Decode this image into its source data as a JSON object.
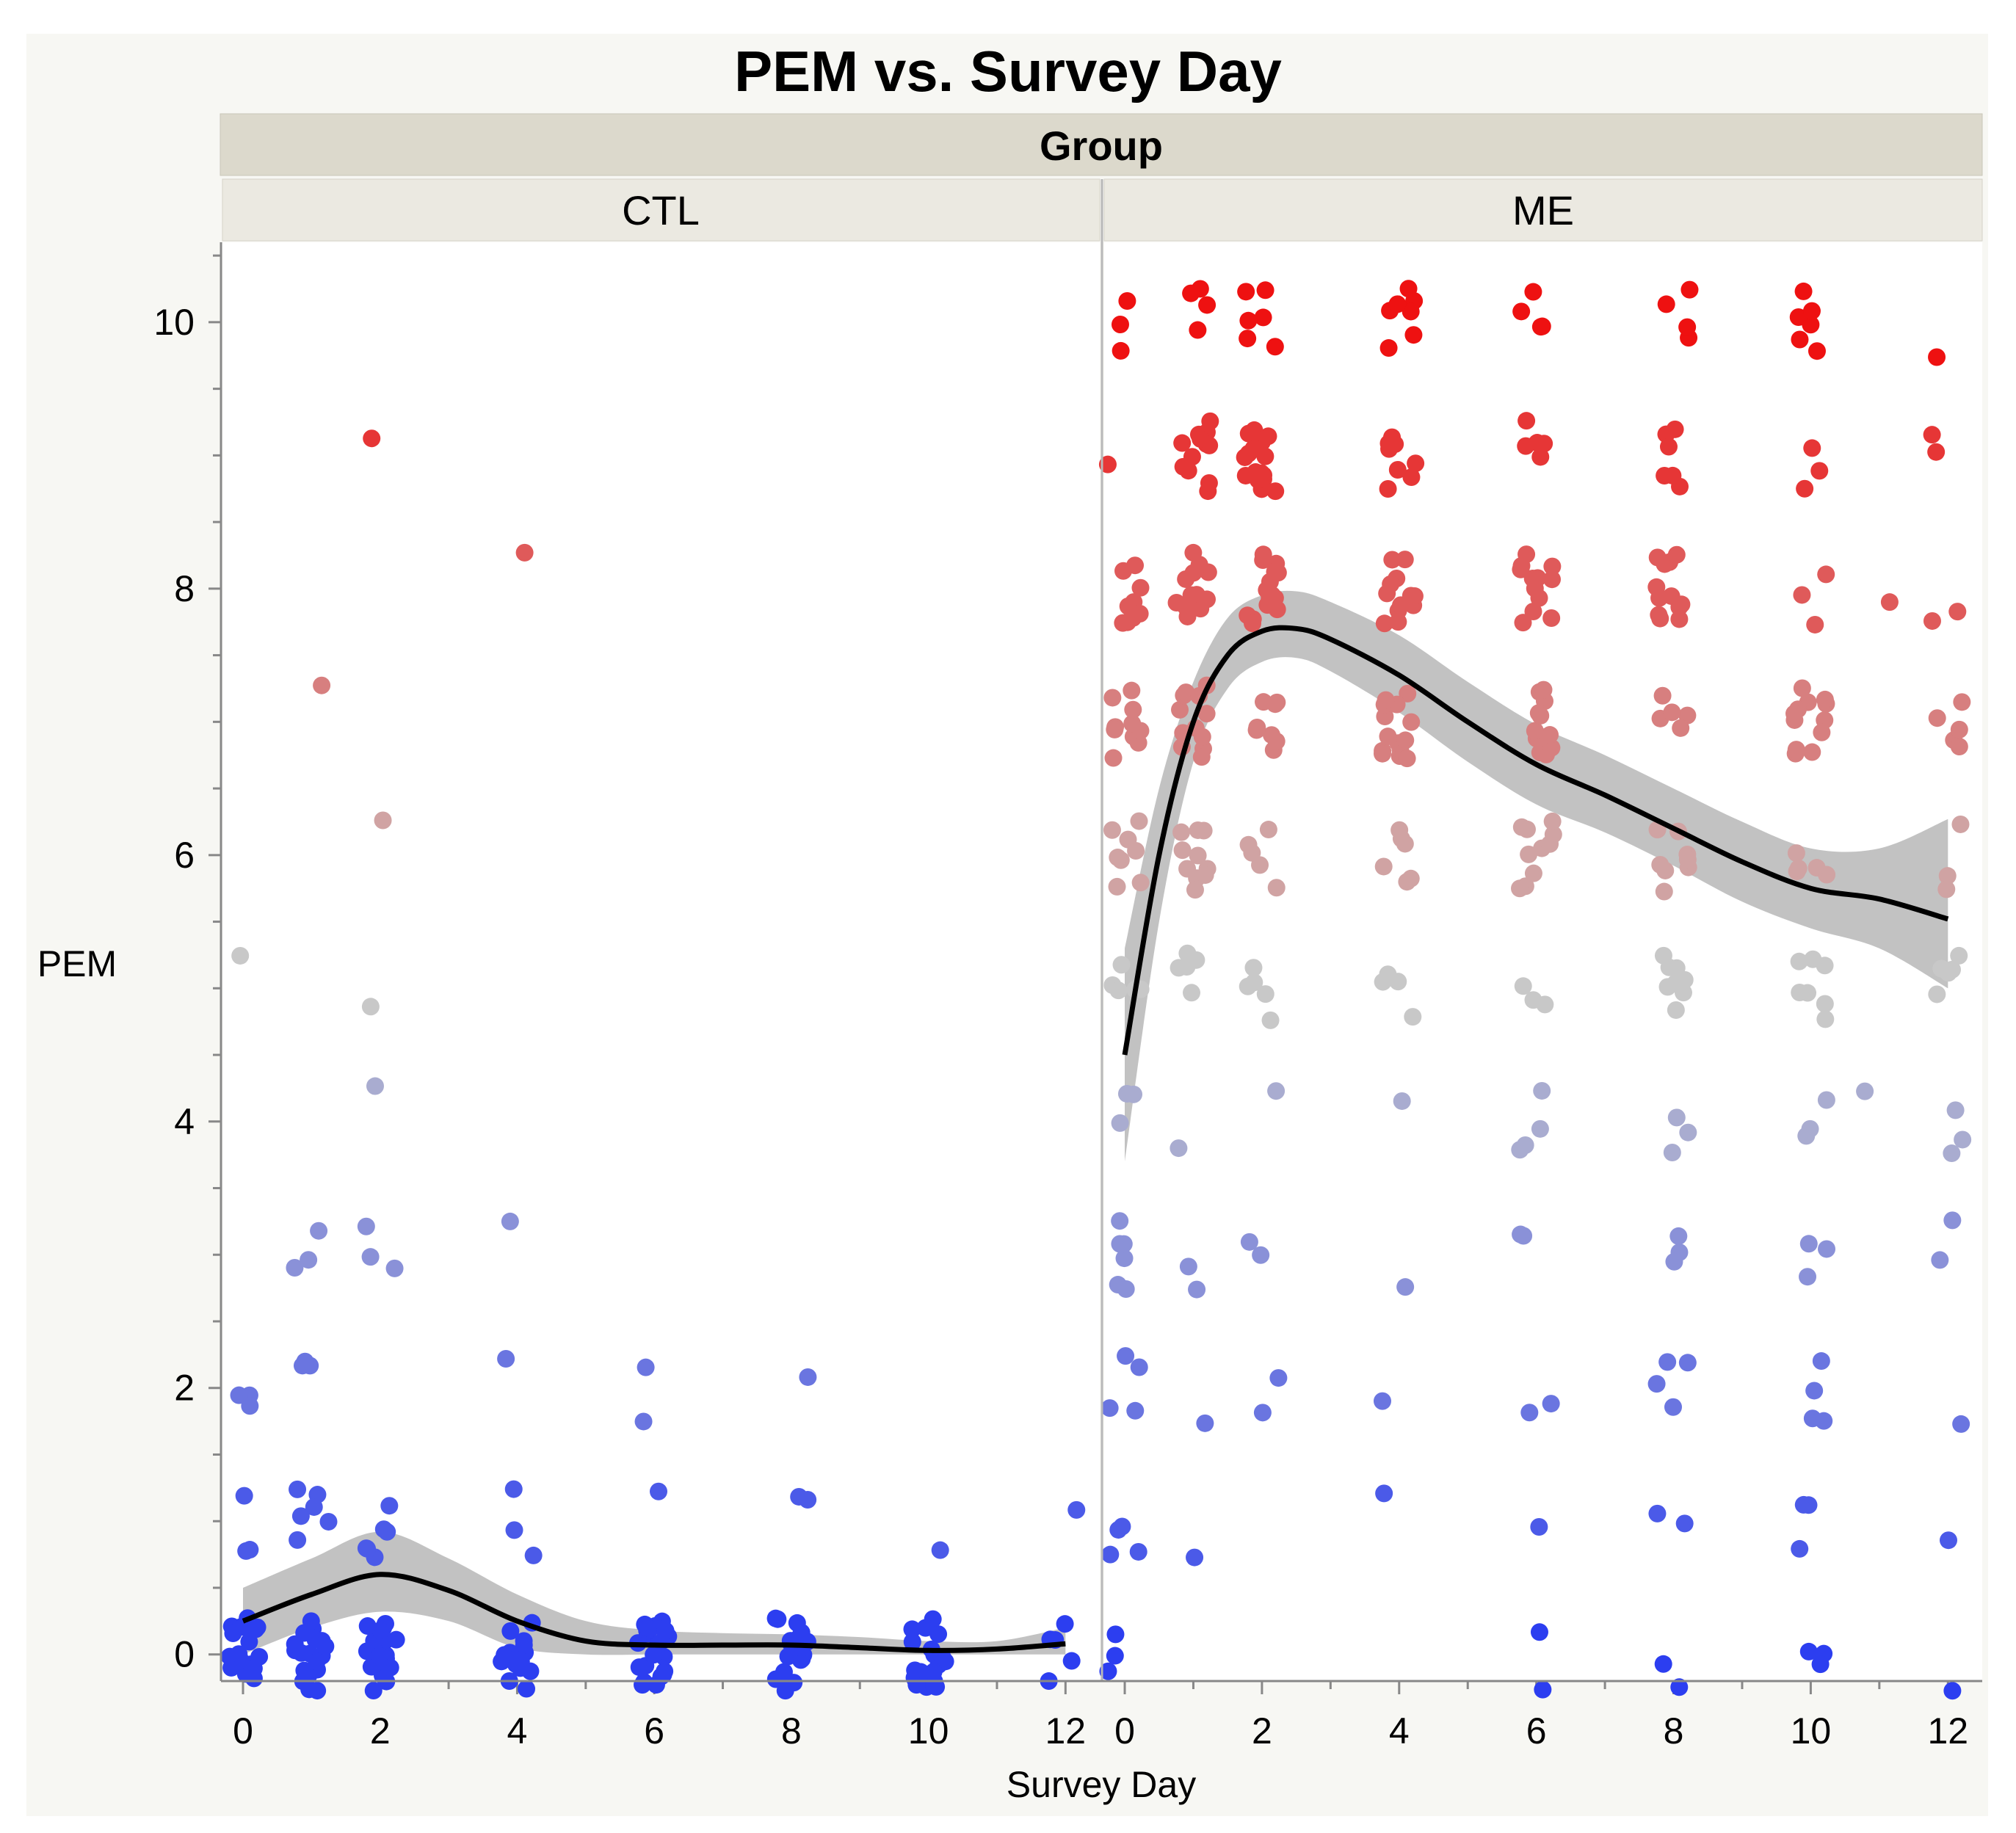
{
  "chart_data": {
    "type": "scatter",
    "title": "PEM vs. Survey Day",
    "group_header": "Group",
    "xlabel": "Survey Day",
    "ylabel": "PEM",
    "xlim": [
      -0.3,
      12.5
    ],
    "ylim": [
      -0.2,
      10.6
    ],
    "x_ticks": [
      0,
      2,
      4,
      6,
      8,
      10,
      12
    ],
    "x_tick_labels": [
      "0",
      "2",
      "4",
      "6",
      "8",
      "10",
      "12"
    ],
    "y_ticks": [
      0,
      2,
      4,
      6,
      8,
      10
    ],
    "y_tick_labels": [
      "0",
      "2",
      "4",
      "6",
      "8",
      "10"
    ],
    "color_scale": {
      "low": "#2c3ef0",
      "mid": "#c8c8c8",
      "high": "#ee1111",
      "mid_value": 5
    },
    "panels": [
      {
        "name": "CTL",
        "points": [
          {
            "x": 0,
            "y": 0,
            "n": 22
          },
          {
            "x": 0,
            "y": 1,
            "n": 3
          },
          {
            "x": 0,
            "y": 2,
            "n": 3
          },
          {
            "x": 0,
            "y": 5,
            "n": 1
          },
          {
            "x": 1,
            "y": 0,
            "n": 18
          },
          {
            "x": 1,
            "y": 1,
            "n": 6
          },
          {
            "x": 1,
            "y": 2,
            "n": 3
          },
          {
            "x": 1,
            "y": 3,
            "n": 3
          },
          {
            "x": 1,
            "y": 7,
            "n": 1
          },
          {
            "x": 2,
            "y": 0,
            "n": 18
          },
          {
            "x": 2,
            "y": 1,
            "n": 6
          },
          {
            "x": 2,
            "y": 3,
            "n": 3
          },
          {
            "x": 2,
            "y": 4,
            "n": 1
          },
          {
            "x": 2,
            "y": 5,
            "n": 1
          },
          {
            "x": 2,
            "y": 6,
            "n": 1
          },
          {
            "x": 2,
            "y": 9,
            "n": 1
          },
          {
            "x": 4,
            "y": 0,
            "n": 16
          },
          {
            "x": 4,
            "y": 1,
            "n": 3
          },
          {
            "x": 4,
            "y": 2,
            "n": 1
          },
          {
            "x": 4,
            "y": 3,
            "n": 1
          },
          {
            "x": 4,
            "y": 8,
            "n": 1
          },
          {
            "x": 6,
            "y": 0,
            "n": 22
          },
          {
            "x": 6,
            "y": 1,
            "n": 1
          },
          {
            "x": 6,
            "y": 2,
            "n": 2
          },
          {
            "x": 8,
            "y": 0,
            "n": 22
          },
          {
            "x": 8,
            "y": 1,
            "n": 2
          },
          {
            "x": 8,
            "y": 2,
            "n": 1
          },
          {
            "x": 10,
            "y": 0,
            "n": 22
          },
          {
            "x": 10,
            "y": 1,
            "n": 1
          },
          {
            "x": 12,
            "y": 0,
            "n": 5
          },
          {
            "x": 12,
            "y": 1,
            "n": 1
          }
        ],
        "smoother": {
          "x": [
            0,
            1,
            2,
            3,
            4,
            5,
            6,
            7,
            8,
            9,
            10,
            11,
            12
          ],
          "y": [
            0.25,
            0.45,
            0.6,
            0.48,
            0.25,
            0.1,
            0.07,
            0.07,
            0.07,
            0.05,
            0.03,
            0.04,
            0.08
          ],
          "lower": [
            0.0,
            0.2,
            0.32,
            0.25,
            0.05,
            0.0,
            0.0,
            0.0,
            0.0,
            0.0,
            0.0,
            0.0,
            0.0
          ],
          "upper": [
            0.5,
            0.72,
            0.92,
            0.72,
            0.45,
            0.25,
            0.18,
            0.16,
            0.15,
            0.13,
            0.1,
            0.1,
            0.2
          ]
        }
      },
      {
        "name": "ME",
        "points": [
          {
            "x": 0,
            "y": 0,
            "n": 3
          },
          {
            "x": 0,
            "y": 1,
            "n": 4
          },
          {
            "x": 0,
            "y": 2,
            "n": 4
          },
          {
            "x": 0,
            "y": 3,
            "n": 6
          },
          {
            "x": 0,
            "y": 4,
            "n": 3
          },
          {
            "x": 0,
            "y": 5,
            "n": 5
          },
          {
            "x": 0,
            "y": 6,
            "n": 8
          },
          {
            "x": 0,
            "y": 7,
            "n": 10
          },
          {
            "x": 0,
            "y": 8,
            "n": 9
          },
          {
            "x": 0,
            "y": 9,
            "n": 1
          },
          {
            "x": 0,
            "y": 10,
            "n": 3
          },
          {
            "x": 1,
            "y": 1,
            "n": 1
          },
          {
            "x": 1,
            "y": 2,
            "n": 1
          },
          {
            "x": 1,
            "y": 3,
            "n": 2
          },
          {
            "x": 1,
            "y": 4,
            "n": 1
          },
          {
            "x": 1,
            "y": 5,
            "n": 6
          },
          {
            "x": 1,
            "y": 6,
            "n": 10
          },
          {
            "x": 1,
            "y": 7,
            "n": 12
          },
          {
            "x": 1,
            "y": 8,
            "n": 12
          },
          {
            "x": 1,
            "y": 9,
            "n": 12
          },
          {
            "x": 1,
            "y": 10,
            "n": 4
          },
          {
            "x": 2,
            "y": 2,
            "n": 2
          },
          {
            "x": 2,
            "y": 3,
            "n": 2
          },
          {
            "x": 2,
            "y": 4,
            "n": 1
          },
          {
            "x": 2,
            "y": 5,
            "n": 5
          },
          {
            "x": 2,
            "y": 6,
            "n": 5
          },
          {
            "x": 2,
            "y": 7,
            "n": 8
          },
          {
            "x": 2,
            "y": 8,
            "n": 16
          },
          {
            "x": 2,
            "y": 9,
            "n": 18
          },
          {
            "x": 2,
            "y": 10,
            "n": 6
          },
          {
            "x": 4,
            "y": 1,
            "n": 1
          },
          {
            "x": 4,
            "y": 2,
            "n": 1
          },
          {
            "x": 4,
            "y": 3,
            "n": 1
          },
          {
            "x": 4,
            "y": 4,
            "n": 1
          },
          {
            "x": 4,
            "y": 5,
            "n": 4
          },
          {
            "x": 4,
            "y": 6,
            "n": 6
          },
          {
            "x": 4,
            "y": 7,
            "n": 14
          },
          {
            "x": 4,
            "y": 8,
            "n": 12
          },
          {
            "x": 4,
            "y": 9,
            "n": 8
          },
          {
            "x": 4,
            "y": 10,
            "n": 7
          },
          {
            "x": 6,
            "y": 0,
            "n": 2
          },
          {
            "x": 6,
            "y": 1,
            "n": 1
          },
          {
            "x": 6,
            "y": 2,
            "n": 2
          },
          {
            "x": 6,
            "y": 3,
            "n": 2
          },
          {
            "x": 6,
            "y": 4,
            "n": 4
          },
          {
            "x": 6,
            "y": 5,
            "n": 3
          },
          {
            "x": 6,
            "y": 6,
            "n": 10
          },
          {
            "x": 6,
            "y": 7,
            "n": 12
          },
          {
            "x": 6,
            "y": 8,
            "n": 12
          },
          {
            "x": 6,
            "y": 9,
            "n": 5
          },
          {
            "x": 6,
            "y": 10,
            "n": 4
          },
          {
            "x": 8,
            "y": 0,
            "n": 2
          },
          {
            "x": 8,
            "y": 1,
            "n": 2
          },
          {
            "x": 8,
            "y": 2,
            "n": 4
          },
          {
            "x": 8,
            "y": 3,
            "n": 3
          },
          {
            "x": 8,
            "y": 4,
            "n": 3
          },
          {
            "x": 8,
            "y": 5,
            "n": 8
          },
          {
            "x": 8,
            "y": 6,
            "n": 8
          },
          {
            "x": 8,
            "y": 7,
            "n": 5
          },
          {
            "x": 8,
            "y": 8,
            "n": 12
          },
          {
            "x": 8,
            "y": 9,
            "n": 6
          },
          {
            "x": 8,
            "y": 10,
            "n": 4
          },
          {
            "x": 10,
            "y": 0,
            "n": 3
          },
          {
            "x": 10,
            "y": 1,
            "n": 3
          },
          {
            "x": 10,
            "y": 2,
            "n": 4
          },
          {
            "x": 10,
            "y": 3,
            "n": 3
          },
          {
            "x": 10,
            "y": 4,
            "n": 3
          },
          {
            "x": 10,
            "y": 5,
            "n": 7
          },
          {
            "x": 10,
            "y": 6,
            "n": 5
          },
          {
            "x": 10,
            "y": 7,
            "n": 12
          },
          {
            "x": 10,
            "y": 8,
            "n": 3
          },
          {
            "x": 10,
            "y": 9,
            "n": 3
          },
          {
            "x": 10,
            "y": 10,
            "n": 6
          },
          {
            "x": 11,
            "y": 4,
            "n": 1
          },
          {
            "x": 11,
            "y": 8,
            "n": 1
          },
          {
            "x": 12,
            "y": 0,
            "n": 1
          },
          {
            "x": 12,
            "y": 1,
            "n": 1
          },
          {
            "x": 12,
            "y": 2,
            "n": 1
          },
          {
            "x": 12,
            "y": 3,
            "n": 2
          },
          {
            "x": 12,
            "y": 4,
            "n": 3
          },
          {
            "x": 12,
            "y": 5,
            "n": 5
          },
          {
            "x": 12,
            "y": 6,
            "n": 3
          },
          {
            "x": 12,
            "y": 7,
            "n": 5
          },
          {
            "x": 12,
            "y": 8,
            "n": 2
          },
          {
            "x": 12,
            "y": 9,
            "n": 2
          },
          {
            "x": 12,
            "y": 10,
            "n": 1
          }
        ],
        "smoother": {
          "x": [
            0,
            0.5,
            1,
            1.5,
            2,
            2.5,
            3,
            4,
            5,
            6,
            7,
            8,
            9,
            10,
            11,
            12
          ],
          "y": [
            4.5,
            6.0,
            7.0,
            7.5,
            7.68,
            7.7,
            7.62,
            7.35,
            7.0,
            6.68,
            6.45,
            6.2,
            5.95,
            5.75,
            5.67,
            5.52
          ],
          "lower": [
            3.7,
            5.5,
            6.7,
            7.25,
            7.45,
            7.48,
            7.38,
            7.07,
            6.7,
            6.38,
            6.17,
            5.92,
            5.65,
            5.45,
            5.3,
            5.0
          ],
          "upper": [
            5.3,
            6.5,
            7.3,
            7.78,
            7.95,
            7.98,
            7.9,
            7.65,
            7.3,
            6.98,
            6.75,
            6.5,
            6.25,
            6.05,
            6.05,
            6.27
          ]
        }
      }
    ]
  }
}
